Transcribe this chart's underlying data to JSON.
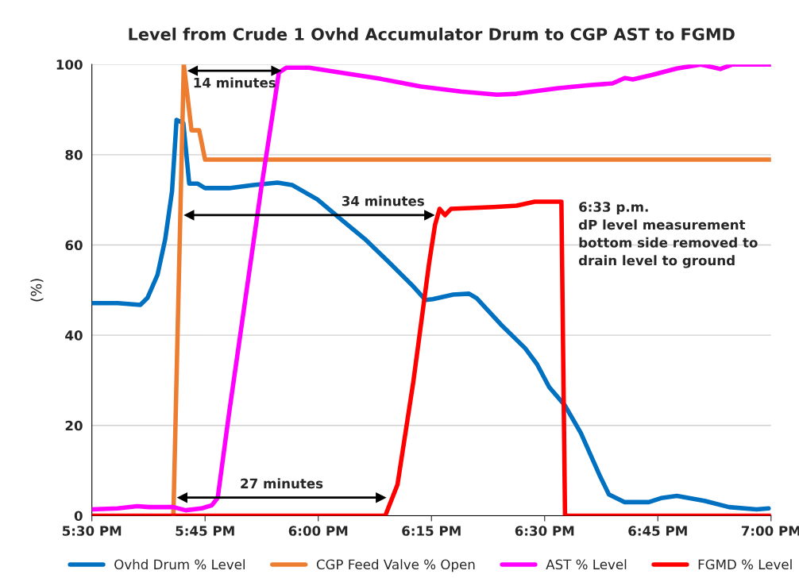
{
  "chart_data": {
    "type": "line",
    "title": "Level from Crude 1 Ovhd Accumulator Drum to CGP AST to FGMD",
    "ylabel": "(%)",
    "xlim": [
      17.5,
      19.0
    ],
    "xticks": [
      {
        "value": 17.5,
        "label": "5:30 PM"
      },
      {
        "value": 17.75,
        "label": "5:45 PM"
      },
      {
        "value": 18.0,
        "label": "6:00 PM"
      },
      {
        "value": 18.25,
        "label": "6:15 PM"
      },
      {
        "value": 18.5,
        "label": "6:30 PM"
      },
      {
        "value": 18.75,
        "label": "6:45 PM"
      },
      {
        "value": 19.0,
        "label": "7:00 PM"
      }
    ],
    "ylim": [
      0,
      100
    ],
    "yticks": [
      0,
      20,
      40,
      60,
      80,
      100
    ],
    "grid": "y",
    "legend": "bottom",
    "line_style": "solid",
    "marker": "none",
    "series": [
      {
        "name": "Ovhd Drum % Level",
        "color": "#0070c0",
        "x": [
          17.5,
          17.557,
          17.607,
          17.623,
          17.645,
          17.662,
          17.677,
          17.687,
          17.702,
          17.715,
          17.733,
          17.75,
          17.803,
          17.857,
          17.91,
          17.942,
          17.998,
          18.05,
          18.103,
          18.157,
          18.21,
          18.237,
          18.253,
          18.298,
          18.333,
          18.35,
          18.403,
          18.457,
          18.483,
          18.51,
          18.545,
          18.58,
          18.623,
          18.642,
          18.677,
          18.73,
          18.757,
          18.792,
          18.853,
          18.907,
          18.968,
          18.995
        ],
        "values": [
          47.1,
          47.1,
          46.7,
          48.3,
          53.4,
          61.3,
          71.9,
          87.7,
          87.0,
          73.6,
          73.6,
          72.6,
          72.6,
          73.3,
          73.8,
          73.3,
          70.1,
          65.7,
          61.3,
          56.1,
          50.8,
          47.8,
          48.0,
          49.0,
          49.2,
          48.2,
          42.4,
          37.1,
          33.6,
          28.5,
          24.4,
          18.3,
          8.6,
          4.7,
          3.0,
          3.0,
          3.9,
          4.4,
          3.3,
          1.9,
          1.4,
          1.6
        ]
      },
      {
        "name": "CGP Feed Valve % Open",
        "color": "#ed7d31",
        "x": [
          17.68,
          17.703,
          17.72,
          17.737,
          17.75,
          19.0
        ],
        "values": [
          0,
          100,
          85.4,
          85.4,
          78.9,
          78.9
        ]
      },
      {
        "name": "AST % Level",
        "color": "#ff00ff",
        "x": [
          17.5,
          17.557,
          17.6,
          17.627,
          17.68,
          17.707,
          17.742,
          17.765,
          17.778,
          17.803,
          17.838,
          17.873,
          17.9,
          17.913,
          17.93,
          17.98,
          18.05,
          18.138,
          18.227,
          18.315,
          18.395,
          18.438,
          18.527,
          18.598,
          18.65,
          18.677,
          18.695,
          18.738,
          18.792,
          18.845,
          18.888,
          18.915,
          18.977,
          19.0
        ],
        "values": [
          1.4,
          1.6,
          2.1,
          1.9,
          1.9,
          1.2,
          1.6,
          2.3,
          4.0,
          22.7,
          47.3,
          71.9,
          89.5,
          98.2,
          99.3,
          99.3,
          98.2,
          96.8,
          95.1,
          94.0,
          93.3,
          93.5,
          94.7,
          95.4,
          95.8,
          97.0,
          96.7,
          97.7,
          99.1,
          100,
          99,
          100,
          100,
          100
        ]
      },
      {
        "color": "#000000",
        "marker": "triangle",
        "x": [
          17.723,
          17.907
        ],
        "values": [
          98.6,
          98.6
        ]
      },
      {
        "color": "#000000",
        "marker": "triangle",
        "x": [
          17.715,
          18.245
        ],
        "values": [
          66.6,
          66.6
        ]
      },
      {
        "color": "#000000",
        "marker": "triangle",
        "x": [
          17.7,
          18.138
        ],
        "values": [
          4.0,
          4.0
        ]
      },
      {
        "name": "FGMD % Level",
        "color": "#ff0000",
        "x": [
          17.5,
          18.148,
          18.175,
          18.21,
          18.245,
          18.258,
          18.268,
          18.28,
          18.293,
          18.387,
          18.438,
          18.478,
          18.527,
          18.537,
          18.545,
          19.0
        ],
        "values": [
          0,
          0,
          6.9,
          29.7,
          56.1,
          64.5,
          68.0,
          66.6,
          68.0,
          68.4,
          68.7,
          69.6,
          69.6,
          69.6,
          0,
          0
        ]
      }
    ],
    "annotations": [
      {
        "text": "14 minutes",
        "x": 17.815,
        "y": 98.6
      },
      {
        "text": "34 minutes",
        "x": 18.143,
        "y": 66.6
      },
      {
        "text": "27 minutes",
        "x": 17.919,
        "y": 4.0
      },
      {
        "text": "6:33 p.m.\ndP level measurement\nbottom side removed to\ndrain level to ground",
        "x": 18.55,
        "y": 69.6
      }
    ]
  }
}
